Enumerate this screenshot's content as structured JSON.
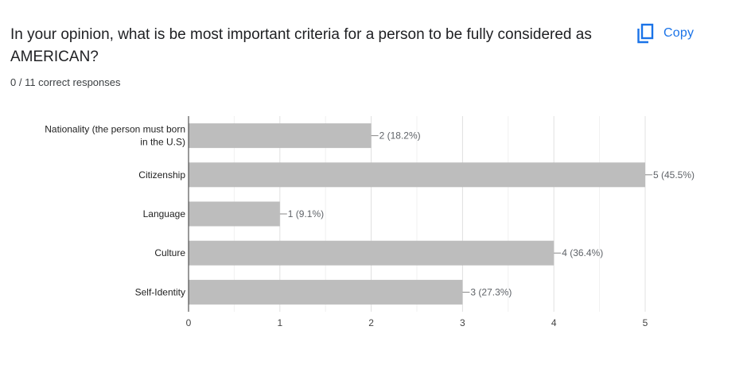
{
  "question": {
    "title": "In your opinion, what is be most important criteria for a person to be fully considered as AMERICAN?",
    "copy_label": "Copy",
    "copy_icon": "copy-icon",
    "responses_summary": "0 / 11 correct responses"
  },
  "colors": {
    "bar": "#bdbdbd",
    "accent": "#1a73e8",
    "text": "#202124",
    "grid": "#e0e0e0"
  },
  "chart_data": {
    "type": "bar",
    "orientation": "horizontal",
    "categories": [
      [
        "Nationality (the person must born",
        "in the U.S)"
      ],
      [
        "Citizenship"
      ],
      [
        "Language"
      ],
      [
        "Culture"
      ],
      [
        "Self-Identity"
      ]
    ],
    "values": [
      2,
      5,
      1,
      4,
      3
    ],
    "data_labels": [
      "2 (18.2%)",
      "5 (45.5%)",
      "1 (9.1%)",
      "4 (36.4%)",
      "3 (27.3%)"
    ],
    "xlim": [
      0,
      5
    ],
    "xticks": [
      "0",
      "1",
      "2",
      "3",
      "4",
      "5"
    ],
    "grid": true,
    "legend": "none"
  }
}
